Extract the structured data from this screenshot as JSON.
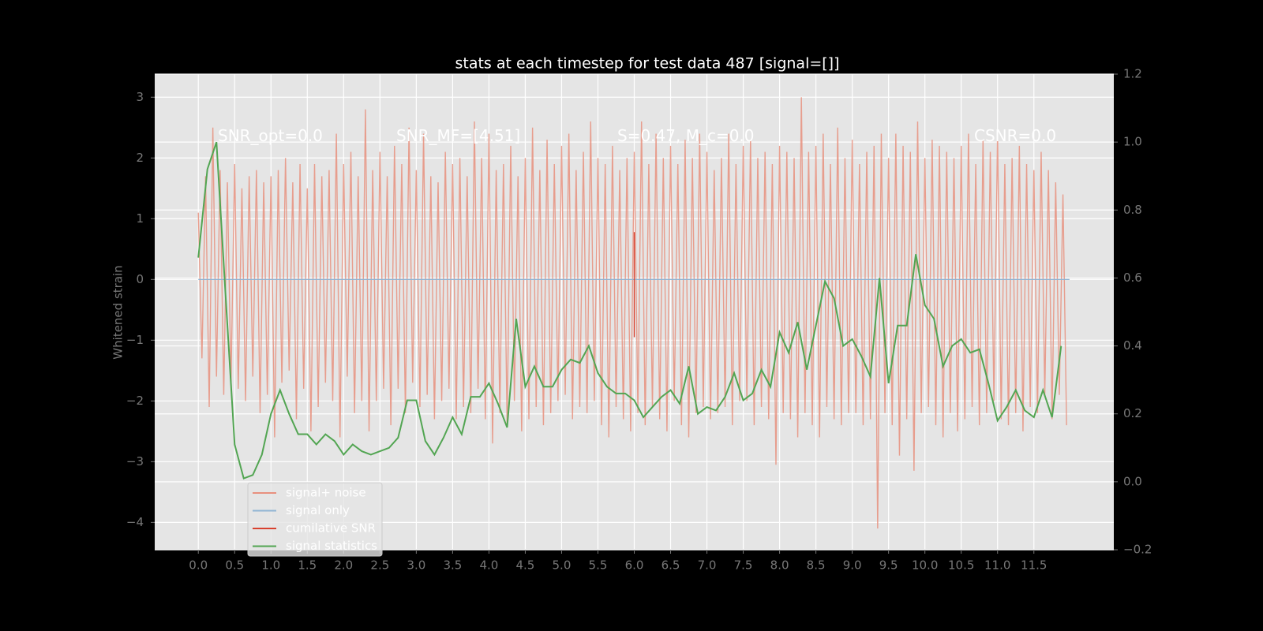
{
  "chart_data": {
    "type": "line",
    "title": "stats at each timestep for test data 487 [signal=[]]",
    "y_label": "Whitened strain",
    "annotations": [
      "SNR_opt=0.0",
      "SNR_MF=[4.51]",
      "S=0.47, M_c=0.0",
      "CSNR=0.0"
    ],
    "xlim": [
      -0.6,
      12.6
    ],
    "ylim": [
      -4.45,
      3.38
    ],
    "y2lim": [
      -0.2,
      1.2
    ],
    "xticks": [
      {
        "value": 0,
        "label": "0.0"
      },
      0.5,
      {
        "value": 1,
        "label": "1.0"
      },
      1.5,
      {
        "value": 2,
        "label": "2.0"
      },
      2.5,
      {
        "value": 3,
        "label": "3.0"
      },
      3.5,
      {
        "value": 4,
        "label": "4.0"
      },
      4.5,
      {
        "value": 5,
        "label": "5.0"
      },
      5.5,
      {
        "value": 6,
        "label": "6.0"
      },
      6.5,
      {
        "value": 7,
        "label": "7.0"
      },
      7.5,
      {
        "value": 8,
        "label": "8.0"
      },
      8.5,
      {
        "value": 9,
        "label": "9.0"
      },
      9.5,
      {
        "value": 10,
        "label": "10.0"
      },
      10.5,
      {
        "value": 11,
        "label": "11.0"
      },
      11.5
    ],
    "yticks": [
      {
        "value": -4,
        "label": "−4"
      },
      {
        "value": -3,
        "label": "−3"
      },
      {
        "value": -2,
        "label": "−2"
      },
      {
        "value": -1,
        "label": "−1"
      },
      0,
      1,
      2,
      3
    ],
    "y2ticks": [
      {
        "value": -0.2,
        "label": "−0.2"
      },
      {
        "value": 0,
        "label": "0.0"
      },
      0.2,
      0.4,
      0.6,
      0.8,
      {
        "value": 1,
        "label": "1.0"
      },
      1.2
    ],
    "grid": true,
    "legend": "lower left",
    "series": [
      {
        "name": "signal+ noise",
        "color": "#e8907e",
        "x": [
          0,
          0.05,
          0.1,
          0.15,
          0.2,
          0.25,
          0.3,
          0.35,
          0.4,
          0.45,
          0.5,
          0.55,
          0.6,
          0.65,
          0.7,
          0.75,
          0.8,
          0.85,
          0.9,
          0.95,
          1,
          1.05,
          1.1,
          1.15,
          1.2,
          1.25,
          1.3,
          1.35,
          1.4,
          1.45,
          1.5,
          1.55,
          1.6,
          1.65,
          1.7,
          1.75,
          1.8,
          1.85,
          1.9,
          1.95,
          2,
          2.05,
          2.1,
          2.15,
          2.2,
          2.25,
          2.3,
          2.35,
          2.4,
          2.45,
          2.5,
          2.55,
          2.6,
          2.65,
          2.7,
          2.75,
          2.8,
          2.85,
          2.9,
          2.95,
          3,
          3.05,
          3.1,
          3.15,
          3.2,
          3.25,
          3.3,
          3.35,
          3.4,
          3.45,
          3.5,
          3.55,
          3.6,
          3.65,
          3.7,
          3.75,
          3.8,
          3.85,
          3.9,
          3.95,
          4,
          4.05,
          4.1,
          4.15,
          4.2,
          4.25,
          4.3,
          4.35,
          4.4,
          4.45,
          4.5,
          4.55,
          4.6,
          4.65,
          4.7,
          4.75,
          4.8,
          4.85,
          4.9,
          4.95,
          5,
          5.05,
          5.1,
          5.15,
          5.2,
          5.25,
          5.3,
          5.35,
          5.4,
          5.45,
          5.5,
          5.55,
          5.6,
          5.65,
          5.7,
          5.75,
          5.8,
          5.85,
          5.9,
          5.95,
          6,
          6.05,
          6.1,
          6.15,
          6.2,
          6.25,
          6.3,
          6.35,
          6.4,
          6.45,
          6.5,
          6.55,
          6.6,
          6.65,
          6.7,
          6.75,
          6.8,
          6.85,
          6.9,
          6.95,
          7,
          7.05,
          7.1,
          7.15,
          7.2,
          7.25,
          7.3,
          7.35,
          7.4,
          7.45,
          7.5,
          7.55,
          7.6,
          7.65,
          7.7,
          7.75,
          7.8,
          7.85,
          7.9,
          7.95,
          8,
          8.05,
          8.1,
          8.15,
          8.2,
          8.25,
          8.3,
          8.35,
          8.4,
          8.45,
          8.5,
          8.55,
          8.6,
          8.65,
          8.7,
          8.75,
          8.8,
          8.85,
          8.9,
          8.95,
          9,
          9.05,
          9.1,
          9.15,
          9.2,
          9.25,
          9.3,
          9.35,
          9.4,
          9.45,
          9.5,
          9.55,
          9.6,
          9.65,
          9.7,
          9.75,
          9.8,
          9.85,
          9.9,
          9.95,
          10,
          10.05,
          10.1,
          10.15,
          10.2,
          10.25,
          10.3,
          10.35,
          10.4,
          10.45,
          10.5,
          10.55,
          10.6,
          10.65,
          10.7,
          10.75,
          10.8,
          10.85,
          10.9,
          10.95,
          11,
          11.05,
          11.1,
          11.15,
          11.2,
          11.25,
          11.3,
          11.35,
          11.4,
          11.45,
          11.5,
          11.55,
          11.6,
          11.65,
          11.7,
          11.75,
          11.8,
          11.85,
          11.9,
          11.95
        ],
        "values": [
          1.1,
          -1.3,
          1.7,
          -2.1,
          2.5,
          -1.6,
          1.8,
          -1.9,
          1.6,
          -1.7,
          1.9,
          -1.8,
          1.5,
          -2.0,
          1.7,
          -1.6,
          1.8,
          -2.2,
          1.6,
          -1.9,
          1.7,
          -2.6,
          1.8,
          -1.7,
          2.0,
          -1.5,
          1.6,
          -2.3,
          1.9,
          -1.8,
          1.5,
          -2.5,
          1.9,
          -2.1,
          1.7,
          -1.7,
          1.8,
          -2.0,
          2.4,
          -2.6,
          1.9,
          -1.6,
          2.1,
          -2.2,
          1.7,
          -2.0,
          2.8,
          -2.5,
          1.8,
          -2.0,
          2.1,
          -1.8,
          1.7,
          -2.4,
          2.2,
          -1.8,
          1.9,
          -2.2,
          2.5,
          -1.7,
          1.8,
          -2.1,
          2.4,
          -1.9,
          1.7,
          -2.3,
          1.6,
          -2.0,
          2.1,
          -1.8,
          1.9,
          -2.3,
          2.0,
          -2.1,
          1.7,
          -2.2,
          2.6,
          -1.8,
          2.0,
          -2.3,
          2.4,
          -2.7,
          1.8,
          -2.2,
          1.9,
          -2.4,
          2.2,
          -2.0,
          1.7,
          -2.5,
          2.0,
          -2.3,
          2.5,
          -2.1,
          1.8,
          -2.4,
          2.3,
          -2.2,
          1.9,
          -2.0,
          2.2,
          -1.9,
          2.4,
          -2.3,
          1.8,
          -2.1,
          2.1,
          -2.2,
          2.6,
          -2.0,
          2.0,
          -2.4,
          1.9,
          -2.6,
          2.2,
          -2.1,
          1.8,
          -2.3,
          2.0,
          -2.5,
          2.1,
          -2.2,
          2.6,
          -2.4,
          1.9,
          -2.1,
          2.4,
          -2.3,
          2.0,
          -2.5,
          2.2,
          -2.0,
          1.9,
          -2.4,
          2.3,
          -2.6,
          2.0,
          -2.2,
          2.4,
          -2.1,
          2.1,
          -2.3,
          1.8,
          -2.2,
          2.0,
          -2.1,
          2.4,
          -2.4,
          1.9,
          -2.0,
          2.2,
          -2.0,
          2.3,
          -2.4,
          2.0,
          -2.1,
          2.1,
          -2.3,
          1.9,
          -3.05,
          2.2,
          -2.2,
          2.1,
          -2.3,
          2.0,
          -2.6,
          3.0,
          -2.2,
          2.1,
          -2.4,
          2.2,
          -2.6,
          2.4,
          -2.1,
          1.9,
          -2.3,
          2.5,
          -2.4,
          2.0,
          -2.2,
          2.3,
          -2.2,
          1.9,
          -2.4,
          2.1,
          -2.3,
          2.2,
          -4.1,
          2.4,
          -2.2,
          2.0,
          -2.4,
          2.4,
          -2.9,
          2.2,
          -2.3,
          2.1,
          -3.15,
          2.6,
          -2.2,
          2.0,
          -2.1,
          2.3,
          -2.4,
          2.2,
          -2.6,
          2.1,
          -2.2,
          2.0,
          -2.5,
          2.2,
          -2.3,
          2.4,
          -2.1,
          1.9,
          -2.4,
          2.3,
          -2.2,
          2.1,
          -2.0,
          2.4,
          -2.3,
          1.9,
          -2.4,
          2.0,
          -2.2,
          2.2,
          -2.5,
          1.9,
          -2.1,
          1.8,
          -2.2,
          2.1,
          -1.9,
          1.8,
          -2.3,
          1.6,
          -1.9,
          1.4,
          -2.4
        ]
      },
      {
        "name": "signal only",
        "color": "#8fb4d4",
        "x": [
          0,
          11.99
        ],
        "values": [
          0,
          0
        ]
      },
      {
        "name": "cumilative SNR",
        "color": "#d8412f",
        "x": [
          6,
          6
        ],
        "values": [
          0.78,
          -0.95
        ]
      },
      {
        "name": "signal statistics",
        "color": "#52a552",
        "axis": "y2",
        "x": [
          0,
          0.125,
          0.25,
          0.375,
          0.5,
          0.625,
          0.75,
          0.875,
          1,
          1.125,
          1.25,
          1.375,
          1.5,
          1.625,
          1.75,
          1.875,
          2,
          2.125,
          2.25,
          2.375,
          2.5,
          2.625,
          2.75,
          2.875,
          3,
          3.125,
          3.25,
          3.375,
          3.5,
          3.625,
          3.75,
          3.875,
          4,
          4.125,
          4.25,
          4.375,
          4.5,
          4.625,
          4.75,
          4.875,
          5,
          5.125,
          5.25,
          5.375,
          5.5,
          5.625,
          5.75,
          5.875,
          6,
          6.125,
          6.25,
          6.375,
          6.5,
          6.625,
          6.75,
          6.875,
          7,
          7.125,
          7.25,
          7.375,
          7.5,
          7.625,
          7.75,
          7.875,
          8,
          8.125,
          8.25,
          8.375,
          8.5,
          8.625,
          8.75,
          8.875,
          9,
          9.125,
          9.25,
          9.375,
          9.5,
          9.625,
          9.75,
          9.875,
          10,
          10.125,
          10.25,
          10.375,
          10.5,
          10.625,
          10.75,
          10.875,
          11,
          11.125,
          11.25,
          11.375,
          11.5,
          11.625,
          11.75,
          11.875
        ],
        "values": [
          0.66,
          0.92,
          1.0,
          0.55,
          0.11,
          0.01,
          0.02,
          0.08,
          0.2,
          0.27,
          0.2,
          0.14,
          0.14,
          0.11,
          0.14,
          0.12,
          0.08,
          0.11,
          0.09,
          0.08,
          0.09,
          0.1,
          0.13,
          0.24,
          0.24,
          0.12,
          0.08,
          0.13,
          0.19,
          0.14,
          0.25,
          0.25,
          0.29,
          0.23,
          0.16,
          0.48,
          0.28,
          0.34,
          0.28,
          0.28,
          0.33,
          0.36,
          0.35,
          0.4,
          0.32,
          0.28,
          0.26,
          0.26,
          0.24,
          0.19,
          0.22,
          0.25,
          0.27,
          0.23,
          0.34,
          0.2,
          0.22,
          0.21,
          0.25,
          0.32,
          0.24,
          0.26,
          0.33,
          0.28,
          0.44,
          0.38,
          0.47,
          0.33,
          0.46,
          0.59,
          0.54,
          0.4,
          0.42,
          0.37,
          0.31,
          0.6,
          0.29,
          0.46,
          0.46,
          0.67,
          0.52,
          0.48,
          0.34,
          0.4,
          0.42,
          0.38,
          0.39,
          0.29,
          0.18,
          0.22,
          0.27,
          0.21,
          0.19,
          0.27,
          0.19,
          0.4
        ]
      }
    ]
  }
}
